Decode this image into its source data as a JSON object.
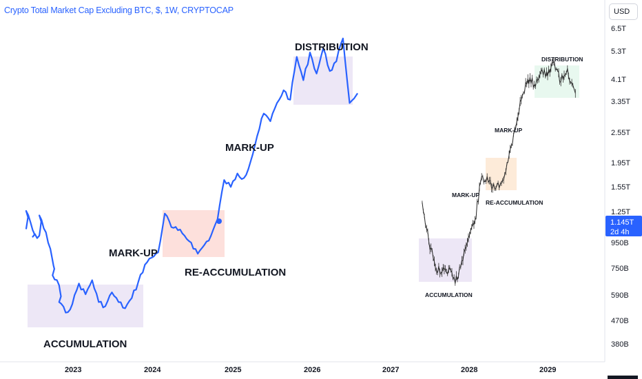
{
  "header": {
    "title": "Crypto Total Market Cap Excluding BTC, $, 1W, CRYPTOCAP",
    "currency": "USD"
  },
  "price_axis": {
    "labels": [
      "6.5T",
      "5.3T",
      "4.1T",
      "3.35T",
      "2.55T",
      "1.95T",
      "1.55T",
      "1.25T",
      "950B",
      "750B",
      "590B",
      "470B",
      "380B"
    ],
    "current_price": "1.145T",
    "countdown": "2d 4h",
    "tag_color": "#2962ff"
  },
  "colors": {
    "line": "#2962ff",
    "accumulation_zone": "#ede7f6",
    "reaccumulation_zone": "#fde0dc",
    "distribution_zone": "#ede7f6",
    "fractal_accumulation_zone": "#ede7f6",
    "fractal_reaccumulation_zone": "#fdebd9",
    "fractal_distribution_zone": "#e8f8ef"
  },
  "chart_data": {
    "type": "line",
    "title": "Crypto Total Market Cap Excluding BTC, $, 1W, CRYPTOCAP",
    "xlabel": "",
    "ylabel": "",
    "y_scale": "log",
    "x_ticks": [
      "2023",
      "2024",
      "2025",
      "2026",
      "2027",
      "2028",
      "2029"
    ],
    "y_ticks": [
      "6.5T",
      "5.3T",
      "4.1T",
      "3.35T",
      "2.55T",
      "1.95T",
      "1.55T",
      "1.25T",
      "950B",
      "750B",
      "590B",
      "470B",
      "380B"
    ],
    "grid": false,
    "series": [
      {
        "style": "solid-blue",
        "points": [
          [
            "2022-06",
            1.06
          ],
          [
            "2022-06",
            1.25
          ],
          [
            "2022-07",
            1.05
          ],
          [
            "2022-07",
            0.99
          ],
          [
            "2022-08",
            1.0
          ],
          [
            "2022-08",
            1.2
          ],
          [
            "2022-09",
            1.03
          ],
          [
            "2022-10",
            0.8
          ],
          [
            "2022-10",
            0.7
          ],
          [
            "2022-11",
            0.64
          ],
          [
            "2022-11",
            0.55
          ],
          [
            "2022-12",
            0.5
          ],
          [
            "2023-01",
            0.54
          ],
          [
            "2023-02",
            0.65
          ],
          [
            "2023-03",
            0.59
          ],
          [
            "2023-04",
            0.67
          ],
          [
            "2023-05",
            0.55
          ],
          [
            "2023-06",
            0.53
          ],
          [
            "2023-07",
            0.6
          ],
          [
            "2023-08",
            0.55
          ],
          [
            "2023-09",
            0.52
          ],
          [
            "2023-10",
            0.57
          ],
          [
            "2023-11",
            0.66
          ],
          [
            "2023-12",
            0.77
          ],
          [
            "2024-01",
            0.82
          ],
          [
            "2024-02",
            0.86
          ],
          [
            "2024-03",
            1.22
          ],
          [
            "2024-04",
            1.08
          ],
          [
            "2024-05",
            1.05
          ],
          [
            "2024-06",
            1.0
          ],
          [
            "2024-07",
            0.94
          ],
          [
            "2024-08",
            0.85
          ],
          [
            "2024-09",
            0.92
          ],
          [
            "2024-10",
            1.0
          ],
          [
            "2024-11",
            1.16
          ],
          [
            "2024-12",
            1.65
          ],
          [
            "2025-01",
            1.55
          ],
          [
            "2025-02",
            1.75
          ],
          [
            "2025-03",
            1.68
          ],
          [
            "2025-04",
            1.95
          ],
          [
            "2025-05",
            2.45
          ],
          [
            "2025-06",
            3.0
          ],
          [
            "2025-07",
            2.8
          ],
          [
            "2025-08",
            3.3
          ],
          [
            "2025-09",
            3.7
          ],
          [
            "2025-10",
            3.4
          ],
          [
            "2025-11",
            5.0
          ],
          [
            "2025-12",
            4.05
          ],
          [
            "2026-01",
            5.2
          ],
          [
            "2026-02",
            4.3
          ],
          [
            "2026-03",
            5.4
          ],
          [
            "2026-04",
            4.4
          ],
          [
            "2026-05",
            4.8
          ],
          [
            "2026-06",
            5.9
          ],
          [
            "2026-07",
            3.3
          ],
          [
            "2026-08",
            3.6
          ]
        ]
      },
      {
        "style": "fractal-bars-black",
        "points": [
          [
            "2027-06",
            1.35
          ],
          [
            "2027-07",
            0.95
          ],
          [
            "2027-08",
            0.75
          ],
          [
            "2027-09",
            0.72
          ],
          [
            "2027-10",
            0.74
          ],
          [
            "2027-11",
            0.65
          ],
          [
            "2027-12",
            0.8
          ],
          [
            "2028-01",
            0.98
          ],
          [
            "2028-02",
            1.15
          ],
          [
            "2028-03",
            1.7
          ],
          [
            "2028-04",
            1.62
          ],
          [
            "2028-05",
            1.52
          ],
          [
            "2028-06",
            1.6
          ],
          [
            "2028-07",
            1.95
          ],
          [
            "2028-08",
            2.6
          ],
          [
            "2028-09",
            3.4
          ],
          [
            "2028-10",
            4.1
          ],
          [
            "2028-11",
            3.9
          ],
          [
            "2028-12",
            4.4
          ],
          [
            "2029-01",
            4.2
          ],
          [
            "2029-02",
            4.8
          ],
          [
            "2029-03",
            4.0
          ],
          [
            "2029-04",
            4.5
          ],
          [
            "2029-05",
            3.6
          ]
        ]
      }
    ],
    "annotations": {
      "main": [
        "ACCUMULATION",
        "MARK-UP",
        "RE-ACCUMULATION",
        "MARK-UP",
        "DISTRIBUTION"
      ],
      "fractal": [
        "ACCUMULATION",
        "MARK-UP",
        "RE-ACCUMULATION",
        "MARK-UP",
        "DISTRIBUTION"
      ]
    }
  }
}
